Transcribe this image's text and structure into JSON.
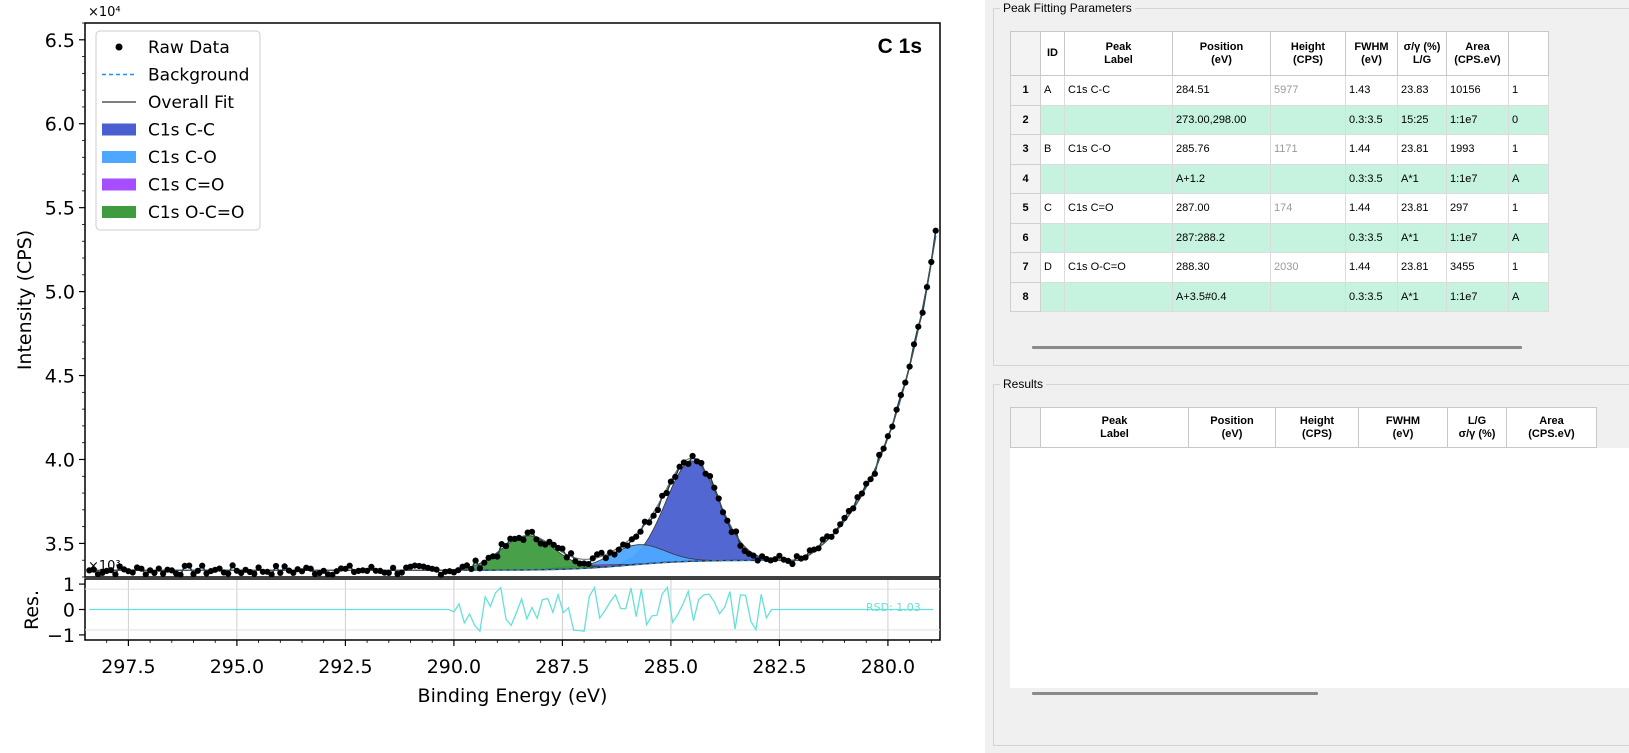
{
  "plot": {
    "title": "C 1s",
    "ylabel": "Intensity (CPS)",
    "xlabel": "Binding Energy (eV)",
    "y_multiplier": "×10⁴",
    "res_multiplier": "×10³",
    "res_ylabel": "Res.",
    "rsd_label": "RSD: 1.03",
    "y_ticks": [
      "6.5",
      "6.0",
      "5.5",
      "5.0",
      "4.5",
      "4.0",
      "3.5"
    ],
    "res_ticks": [
      "1",
      "0",
      "−1"
    ],
    "x_ticks": [
      "297.5",
      "295.0",
      "292.5",
      "290.0",
      "287.5",
      "285.0",
      "282.5",
      "280.0"
    ],
    "legend": [
      "Raw Data",
      "Background",
      "Overall Fit",
      "C1s C-C",
      "C1s C-O",
      "C1s C=O",
      "C1s O-C=O"
    ],
    "colors": {
      "cc": "#4a5fd0",
      "co": "#4da6ff",
      "cdo": "#a64dff",
      "occo": "#3e9b3e",
      "background": "#1e90ff",
      "fit": "#555555",
      "residual": "#66e0d8"
    }
  },
  "chart_data": {
    "type": "scatter",
    "xlabel": "Binding Energy (eV)",
    "ylabel": "Intensity (CPS)",
    "x_reversed": true,
    "xlim": [
      298.5,
      278.8
    ],
    "ylim": [
      33000,
      66000
    ],
    "baseline_cps": 34000,
    "edge_rise": {
      "x_start": 282.0,
      "x_end": 278.8,
      "y_end": 55000
    },
    "peaks": [
      {
        "name": "C1s C-C",
        "position": 284.51,
        "height": 5977,
        "fwhm": 1.43
      },
      {
        "name": "C1s C-O",
        "position": 285.76,
        "height": 1171,
        "fwhm": 1.44
      },
      {
        "name": "C1s C=O",
        "position": 287.0,
        "height": 174,
        "fwhm": 1.44
      },
      {
        "name": "C1s O-C=O",
        "position": 288.3,
        "height": 2030,
        "fwhm": 1.44
      }
    ],
    "residual_ylim": [
      -1.2,
      1.2
    ],
    "rsd": 1.03
  },
  "params": {
    "title": "Peak Fitting Parameters",
    "headers": [
      "ID",
      "Peak\nLabel",
      "Position\n(eV)",
      "Height\n(CPS)",
      "FWHM\n(eV)",
      "σ/γ (%)\nL/G",
      "Area\n(CPS.eV)",
      ""
    ],
    "rows": [
      {
        "num": "1",
        "cells": [
          "A",
          "C1s C-C",
          "284.51",
          "5977",
          "1.43",
          "23.83",
          "10156",
          "1"
        ]
      },
      {
        "num": "2",
        "cells": [
          "",
          "",
          "273.00,298.00",
          "",
          "0.3:3.5",
          "15:25",
          "1:1e7",
          "0"
        ]
      },
      {
        "num": "3",
        "cells": [
          "B",
          "C1s C-O",
          "285.76",
          "1171",
          "1.44",
          "23.81",
          "1993",
          "1"
        ]
      },
      {
        "num": "4",
        "cells": [
          "",
          "",
          "A+1.2",
          "",
          "0.3:3.5",
          "A*1",
          "1:1e7",
          "A"
        ]
      },
      {
        "num": "5",
        "cells": [
          "C",
          "C1s C=O",
          "287.00",
          "174",
          "1.44",
          "23.81",
          "297",
          "1"
        ]
      },
      {
        "num": "6",
        "cells": [
          "",
          "",
          "287:288.2",
          "",
          "0.3:3.5",
          "A*1",
          "1:1e7",
          "A"
        ]
      },
      {
        "num": "7",
        "cells": [
          "D",
          "C1s O-C=O",
          "288.30",
          "2030",
          "1.44",
          "23.81",
          "3455",
          "1"
        ]
      },
      {
        "num": "8",
        "cells": [
          "",
          "",
          "A+3.5#0.4",
          "",
          "0.3:3.5",
          "A*1",
          "1:1e7",
          "A"
        ]
      }
    ]
  },
  "results": {
    "title": "Results",
    "headers": [
      "Peak\nLabel",
      "Position\n(eV)",
      "Height\n(CPS)",
      "FWHM\n(eV)",
      "L/G\nσ/γ (%)",
      "Area\n(CPS.eV)"
    ]
  }
}
